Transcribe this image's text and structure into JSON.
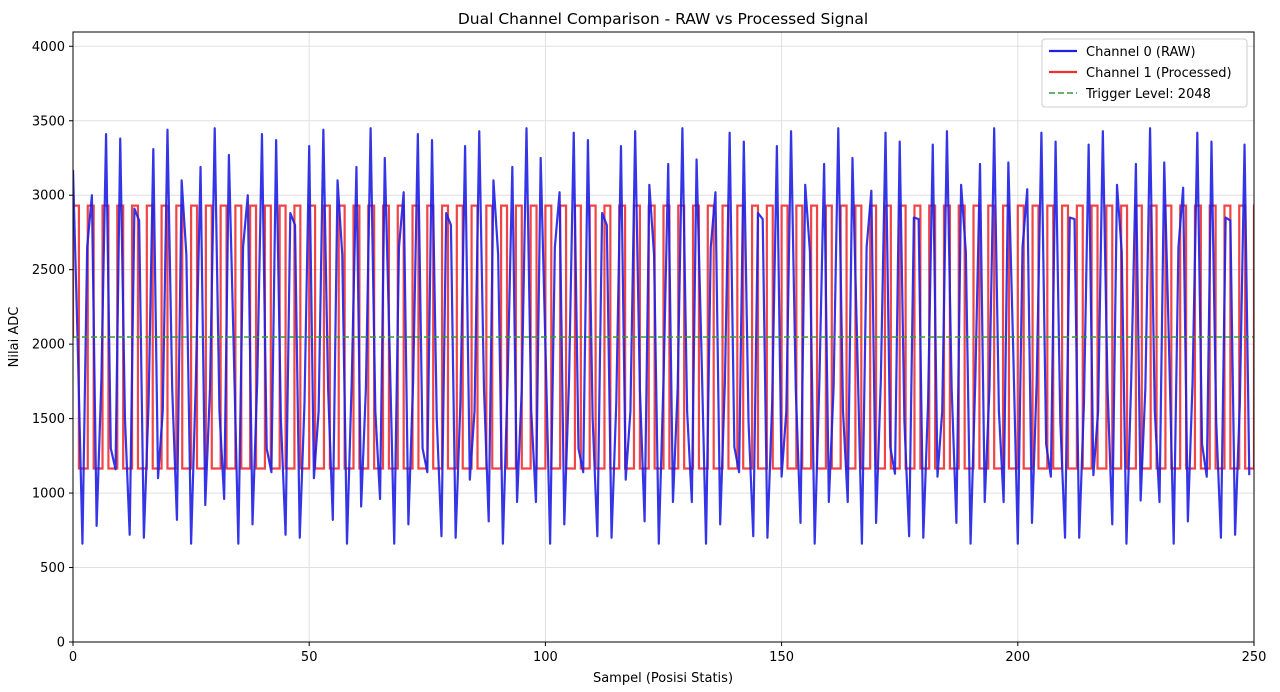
{
  "chart_data": {
    "type": "line",
    "title": "Dual Channel Comparison - RAW vs Processed Signal",
    "xlabel": "Sampel (Posisi Statis)",
    "ylabel": "Nilai ADC",
    "xlim": [
      0,
      250
    ],
    "ylim": [
      0,
      4096
    ],
    "xticks": [
      0,
      50,
      100,
      150,
      200,
      250
    ],
    "yticks": [
      0,
      500,
      1000,
      1500,
      2000,
      2500,
      3000,
      3500,
      4000
    ],
    "grid": true,
    "legend_position": "top-right",
    "series": [
      {
        "name": "Channel 0 (RAW)",
        "color": "#1f1fe6",
        "style": "solid",
        "x_start": 0,
        "x_step": 1,
        "values": [
          3170,
          2000,
          660,
          2650,
          3000,
          780,
          1750,
          3410,
          1300,
          1160,
          3380,
          1500,
          720,
          2910,
          2830,
          700,
          1600,
          3310,
          1100,
          1550,
          3440,
          1700,
          820,
          3100,
          2600,
          660,
          1750,
          3190,
          920,
          1700,
          3450,
          1550,
          960,
          3270,
          2000,
          660,
          2650,
          3000,
          790,
          1750,
          3410,
          1300,
          1140,
          3370,
          1500,
          720,
          2880,
          2800,
          700,
          1600,
          3330,
          1100,
          1550,
          3440,
          1700,
          820,
          3100,
          2600,
          660,
          1750,
          3190,
          910,
          1700,
          3450,
          1550,
          960,
          3250,
          2000,
          660,
          2650,
          3020,
          790,
          1750,
          3410,
          1300,
          1140,
          3370,
          1500,
          710,
          2880,
          2800,
          700,
          1600,
          3330,
          1090,
          1550,
          3430,
          1700,
          810,
          3100,
          2600,
          660,
          1750,
          3190,
          940,
          1700,
          3450,
          1550,
          940,
          3250,
          2000,
          660,
          2650,
          3020,
          790,
          1750,
          3420,
          1300,
          1140,
          3370,
          1500,
          710,
          2880,
          2800,
          700,
          1600,
          3330,
          1090,
          1550,
          3430,
          1700,
          810,
          3070,
          2600,
          660,
          1750,
          3210,
          940,
          1700,
          3450,
          1550,
          940,
          3240,
          2000,
          660,
          2650,
          3020,
          790,
          1750,
          3420,
          1310,
          1140,
          3360,
          1480,
          710,
          2880,
          2840,
          700,
          1600,
          3330,
          1110,
          1550,
          3430,
          1700,
          800,
          3070,
          2620,
          660,
          1750,
          3210,
          940,
          1700,
          3450,
          1550,
          940,
          3250,
          2000,
          660,
          2650,
          3030,
          800,
          1750,
          3420,
          1310,
          1130,
          3360,
          1480,
          710,
          2850,
          2840,
          700,
          1600,
          3340,
          1110,
          1550,
          3430,
          1700,
          800,
          3070,
          2620,
          660,
          1750,
          3210,
          940,
          1700,
          3450,
          1550,
          940,
          3220,
          2000,
          660,
          2650,
          3040,
          800,
          1750,
          3420,
          1330,
          1110,
          3360,
          1480,
          700,
          2850,
          2840,
          700,
          1600,
          3340,
          1120,
          1550,
          3430,
          1700,
          790,
          3070,
          2620,
          660,
          1750,
          3210,
          950,
          1700,
          3450,
          1550,
          940,
          3220,
          2000,
          660,
          2650,
          3050,
          810,
          1750,
          3420,
          1330,
          1110,
          3360,
          1480,
          700,
          2850,
          2830,
          720,
          1600,
          3340,
          1120
        ]
      },
      {
        "name": "Channel 1 (Processed)",
        "color": "#f03030",
        "style": "step",
        "x_start": 0,
        "period": 3.125,
        "high": 2930,
        "low": 1165,
        "duty_high": 0.4
      },
      {
        "name": "Trigger Level: 2048",
        "color": "#3a9a3a",
        "style": "dashed",
        "value": 2048
      }
    ]
  }
}
